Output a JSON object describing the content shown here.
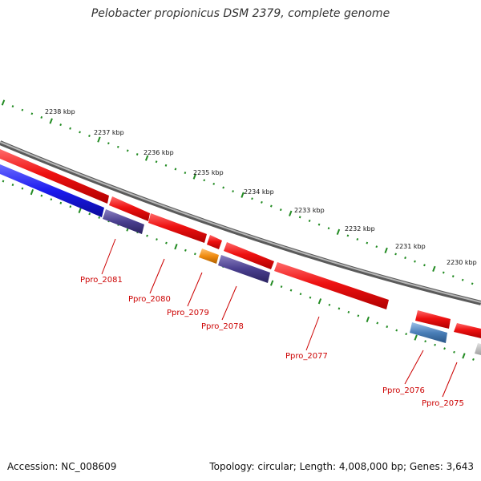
{
  "title": "Pelobacter propionicus DSM 2379, complete genome",
  "footer": {
    "accession": "Accession: NC_008609",
    "summary": "Topology: circular; Length: 4,008,000 bp; Genes: 3,643"
  },
  "scale_labels": [
    "2238 kbp",
    "2237 kbp",
    "2236 kbp",
    "2235 kbp",
    "2234 kbp",
    "2233 kbp",
    "2232 kbp",
    "2231 kbp",
    "2230 kbp"
  ],
  "gene_labels": [
    "Ppro_2081",
    "Ppro_2080",
    "Ppro_2079",
    "Ppro_2078",
    "Ppro_2077",
    "Ppro_2076",
    "Ppro_2075"
  ],
  "colors": {
    "forward_cds": "#ee1111",
    "reverse_blue": "#1a1aee",
    "reverse_indigo": "#4a3f8f",
    "orange": "#f08c10",
    "steel_blue": "#4a7fb8",
    "grey_feature": "#bbbbbb",
    "backbone": "#888888",
    "ticks": "#228b22",
    "label": "#cc0000"
  }
}
